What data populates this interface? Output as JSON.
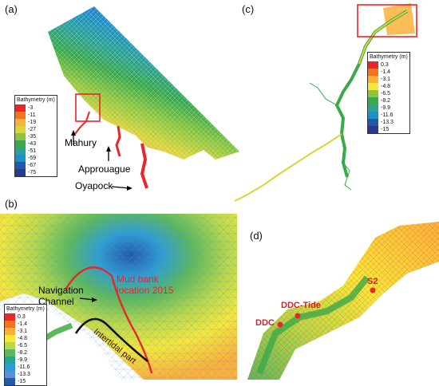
{
  "figure": {
    "panels": {
      "a": {
        "label": "(a)",
        "legend": {
          "title": "Bathymetry (m)",
          "colors": [
            "#e8262b",
            "#f5731f",
            "#fbb03b",
            "#d8d43a",
            "#8cc63f",
            "#39a94a",
            "#2aa198",
            "#1f8fc9",
            "#2459a8",
            "#273a8c"
          ],
          "values": [
            "-3",
            "-11",
            "-19",
            "-27",
            "-35",
            "-43",
            "-51",
            "-59",
            "-67",
            "-75"
          ]
        },
        "annotations": {
          "mahury": "Mahury",
          "approuague": "Approuague",
          "oyapock": "Oyapock"
        }
      },
      "b": {
        "label": "(b)",
        "legend": {
          "title": "Bathymetry (m)",
          "colors": [
            "#e8262b",
            "#f5731f",
            "#fbb03b",
            "#f5e83a",
            "#b8d84a",
            "#5cb85c",
            "#2aa38f",
            "#2f9dd3",
            "#5b8fd6",
            "#2459a8",
            "#273a8c"
          ],
          "values": [
            "0.3",
            "-1.4",
            "-3.1",
            "-4.8",
            "-6.5",
            "-8.2",
            "-9.9",
            "-11.6",
            "-13.3",
            "-15"
          ]
        },
        "annotations": {
          "navigation_channel": "Navigation\nChannel",
          "mud_bank": "Mud bank\nlocation 2015",
          "intertidal": "Intertidal part"
        }
      },
      "c": {
        "label": "(c)",
        "legend": {
          "title": "Bathymetry (m)",
          "colors": [
            "#e8262b",
            "#f5731f",
            "#fbb03b",
            "#f5e83a",
            "#8cc63f",
            "#39a94a",
            "#2aa38f",
            "#1f8fc9",
            "#2459a8",
            "#273a8c"
          ],
          "values": [
            "0.3",
            "-1.4",
            "-3.1",
            "-4.8",
            "-6.5",
            "-8.2",
            "-9.9",
            "-11.6",
            "-13.3",
            "-15"
          ]
        }
      },
      "d": {
        "label": "(d)",
        "stations": {
          "s2": "S2",
          "ddc_tide": "DDC-Tide",
          "ddc": "DDC"
        }
      }
    }
  }
}
